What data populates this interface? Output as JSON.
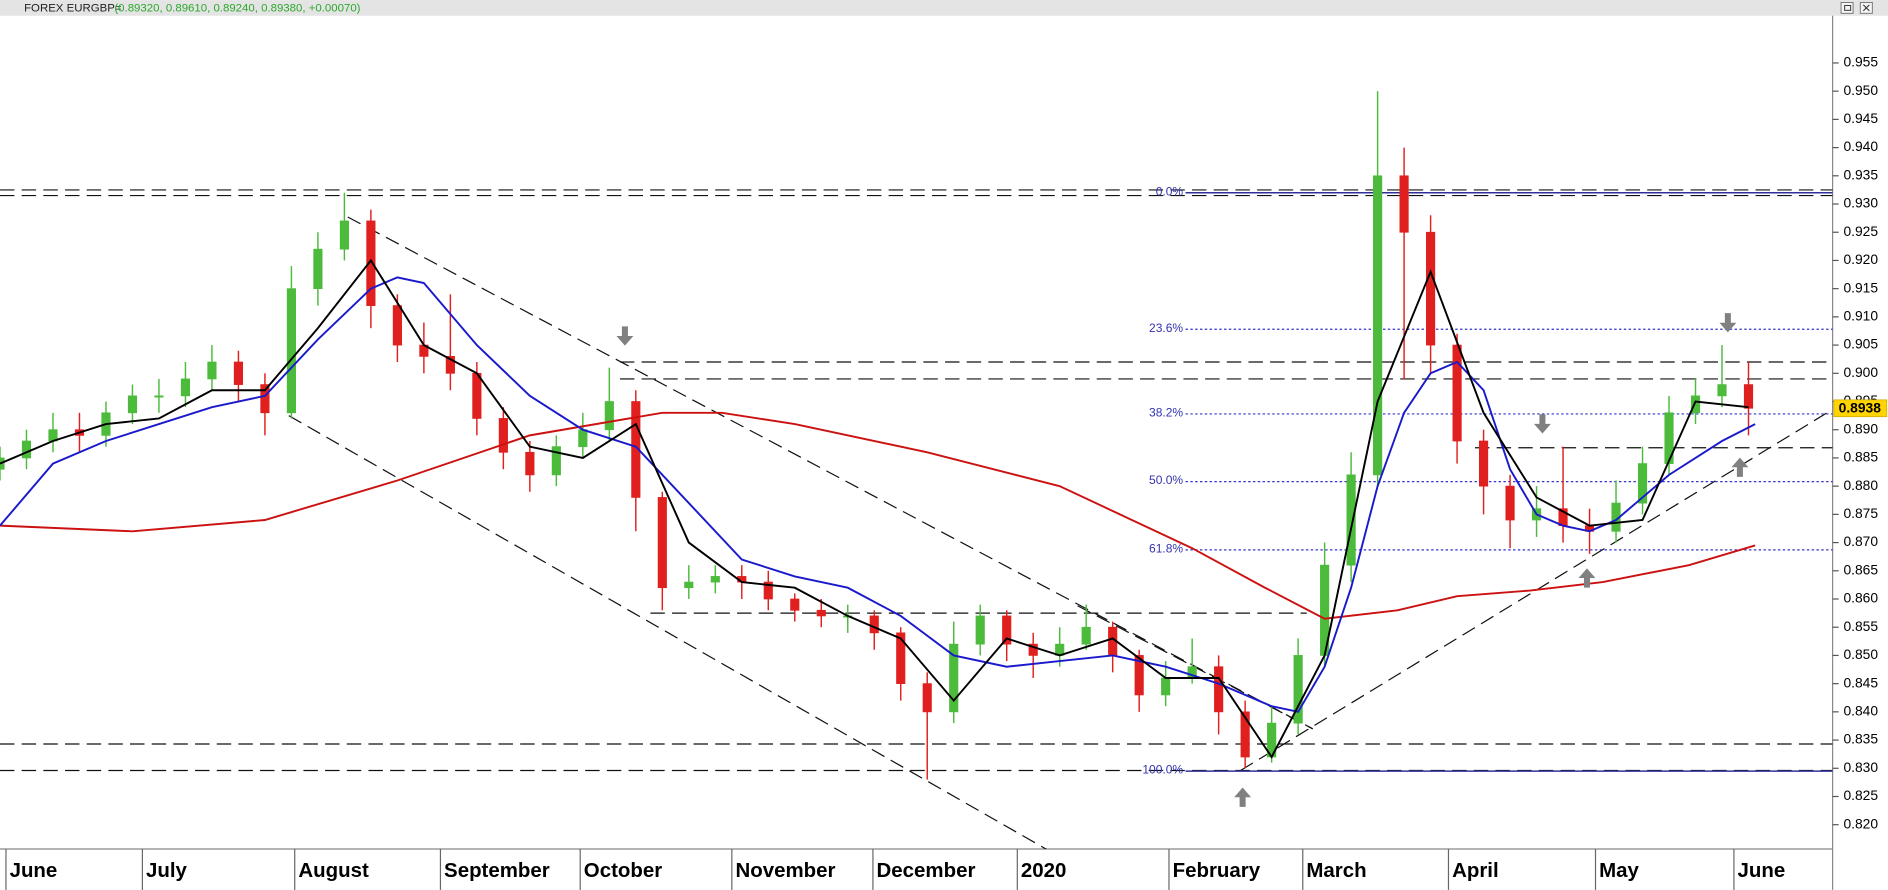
{
  "chart_data": {
    "type": "candlestick",
    "title": "FOREX EURGBP=",
    "subtitle": "(0.89320, 0.89610, 0.89240, 0.89380, +0.00070)",
    "xlim": [
      0,
      276.7
    ],
    "ylim": [
      0.8157,
      0.9623
    ],
    "xticks": [
      {
        "value": 0.9,
        "label": "June"
      },
      {
        "value": 21.5,
        "label": "July"
      },
      {
        "value": 44.5,
        "label": "August"
      },
      {
        "value": 66.5,
        "label": "September"
      },
      {
        "value": 87.6,
        "label": "October"
      },
      {
        "value": 110.5,
        "label": "November"
      },
      {
        "value": 131.8,
        "label": "December"
      },
      {
        "value": 153.6,
        "label": "2020"
      },
      {
        "value": 176.5,
        "label": "February"
      },
      {
        "value": 196.7,
        "label": "March"
      },
      {
        "value": 218.7,
        "label": "April"
      },
      {
        "value": 240.9,
        "label": "May"
      },
      {
        "value": 261.8,
        "label": "June"
      }
    ],
    "yticks": [
      0.955,
      {
        "value": 0.95,
        "label": "0.950"
      },
      0.945,
      {
        "value": 0.94,
        "label": "0.940"
      },
      0.935,
      {
        "value": 0.93,
        "label": "0.930"
      },
      0.925,
      {
        "value": 0.92,
        "label": "0.920"
      },
      0.915,
      {
        "value": 0.91,
        "label": "0.910"
      },
      0.905,
      {
        "value": 0.9,
        "label": "0.900"
      },
      0.895,
      {
        "value": 0.89,
        "label": "0.890"
      },
      0.885,
      {
        "value": 0.88,
        "label": "0.880"
      },
      0.875,
      {
        "value": 0.87,
        "label": "0.870"
      },
      0.865,
      {
        "value": 0.86,
        "label": "0.860"
      },
      0.855,
      {
        "value": 0.85,
        "label": "0.850"
      },
      0.845,
      {
        "value": 0.84,
        "label": "0.840"
      },
      0.835,
      {
        "value": 0.83,
        "label": "0.830"
      },
      0.825,
      {
        "value": 0.82,
        "label": "0.820"
      }
    ],
    "up_color": "#4cbb3c",
    "down_color": "#e0201e",
    "candles": {
      "x": [
        0,
        4,
        8,
        12,
        16,
        20,
        24,
        28,
        32,
        36,
        40,
        44,
        48,
        52,
        56,
        60,
        64,
        68,
        72,
        76,
        80,
        84,
        88,
        92,
        96,
        100,
        104,
        108,
        112,
        116,
        120,
        124,
        128,
        132,
        136,
        140,
        144,
        148,
        152,
        156,
        160,
        164,
        168,
        172,
        176,
        180,
        184,
        188,
        192,
        196,
        200,
        204,
        208,
        212,
        216,
        220,
        224,
        228,
        232,
        236,
        240,
        244,
        248,
        252,
        256,
        260,
        264
      ],
      "open": [
        0.883,
        0.885,
        0.888,
        0.89,
        0.889,
        0.893,
        0.896,
        0.896,
        0.899,
        0.902,
        0.898,
        0.893,
        0.915,
        0.922,
        0.927,
        0.912,
        0.905,
        0.903,
        0.9,
        0.892,
        0.886,
        0.882,
        0.887,
        0.89,
        0.895,
        0.878,
        0.862,
        0.863,
        0.864,
        0.863,
        0.86,
        0.858,
        0.857,
        0.857,
        0.854,
        0.845,
        0.84,
        0.852,
        0.857,
        0.852,
        0.85,
        0.852,
        0.855,
        0.85,
        0.843,
        0.846,
        0.848,
        0.84,
        0.832,
        0.838,
        0.85,
        0.866,
        0.882,
        0.935,
        0.925,
        0.905,
        0.888,
        0.88,
        0.874,
        0.876,
        0.873,
        0.872,
        0.877,
        0.884,
        0.893,
        0.896,
        0.898
      ],
      "high": [
        0.887,
        0.89,
        0.893,
        0.893,
        0.895,
        0.898,
        0.899,
        0.902,
        0.905,
        0.904,
        0.9,
        0.919,
        0.925,
        0.932,
        0.929,
        0.914,
        0.909,
        0.914,
        0.902,
        0.894,
        0.888,
        0.889,
        0.893,
        0.901,
        0.897,
        0.879,
        0.866,
        0.866,
        0.866,
        0.865,
        0.861,
        0.86,
        0.859,
        0.858,
        0.855,
        0.847,
        0.856,
        0.859,
        0.858,
        0.854,
        0.855,
        0.859,
        0.856,
        0.851,
        0.849,
        0.853,
        0.85,
        0.842,
        0.841,
        0.853,
        0.87,
        0.886,
        0.95,
        0.94,
        0.928,
        0.907,
        0.89,
        0.882,
        0.88,
        0.887,
        0.876,
        0.881,
        0.887,
        0.896,
        0.899,
        0.905,
        0.902
      ],
      "low": [
        0.881,
        0.883,
        0.886,
        0.886,
        0.887,
        0.891,
        0.893,
        0.894,
        0.897,
        0.895,
        0.889,
        0.892,
        0.912,
        0.92,
        0.908,
        0.902,
        0.9,
        0.897,
        0.889,
        0.883,
        0.879,
        0.88,
        0.885,
        0.888,
        0.872,
        0.858,
        0.86,
        0.861,
        0.86,
        0.858,
        0.856,
        0.855,
        0.854,
        0.851,
        0.842,
        0.828,
        0.838,
        0.85,
        0.849,
        0.846,
        0.848,
        0.851,
        0.847,
        0.84,
        0.841,
        0.845,
        0.836,
        0.83,
        0.831,
        0.836,
        0.848,
        0.863,
        0.88,
        0.899,
        0.9,
        0.884,
        0.875,
        0.869,
        0.871,
        0.87,
        0.868,
        0.87,
        0.875,
        0.882,
        0.891,
        0.894,
        0.889
      ],
      "close": [
        0.885,
        0.888,
        0.89,
        0.889,
        0.893,
        0.896,
        0.896,
        0.899,
        0.902,
        0.898,
        0.893,
        0.915,
        0.922,
        0.927,
        0.912,
        0.905,
        0.903,
        0.9,
        0.892,
        0.886,
        0.882,
        0.887,
        0.89,
        0.895,
        0.878,
        0.862,
        0.863,
        0.864,
        0.863,
        0.86,
        0.858,
        0.857,
        0.857,
        0.854,
        0.845,
        0.84,
        0.852,
        0.857,
        0.852,
        0.85,
        0.852,
        0.855,
        0.85,
        0.843,
        0.846,
        0.848,
        0.84,
        0.832,
        0.838,
        0.85,
        0.866,
        0.882,
        0.935,
        0.925,
        0.905,
        0.888,
        0.88,
        0.874,
        0.876,
        0.873,
        0.872,
        0.877,
        0.884,
        0.893,
        0.896,
        0.898,
        0.8938
      ]
    },
    "moving_averages": [
      {
        "color": "#cc1111",
        "x": [
          0,
          20,
          40,
          60,
          80,
          100,
          109,
          120,
          140,
          160,
          180,
          191,
          200,
          211,
          220,
          231,
          242,
          255,
          265
        ],
        "values": [
          0.873,
          0.872,
          0.874,
          0.881,
          0.889,
          0.893,
          0.893,
          0.891,
          0.886,
          0.88,
          0.869,
          0.862,
          0.8565,
          0.858,
          0.8605,
          0.8615,
          0.863,
          0.866,
          0.8695
        ]
      },
      {
        "color": "#1a1acc",
        "x": [
          0,
          8,
          16,
          24,
          32,
          40,
          48,
          56,
          60,
          64,
          72,
          80,
          88,
          96,
          104,
          112,
          120,
          128,
          136,
          144,
          152,
          160,
          168,
          176,
          184,
          192,
          196,
          200,
          204,
          208,
          212,
          216,
          220,
          224,
          228,
          232,
          236,
          240,
          244,
          248,
          252,
          256,
          260,
          265
        ],
        "values": [
          0.873,
          0.884,
          0.888,
          0.891,
          0.894,
          0.896,
          0.906,
          0.915,
          0.917,
          0.916,
          0.905,
          0.896,
          0.89,
          0.887,
          0.877,
          0.867,
          0.864,
          0.862,
          0.857,
          0.85,
          0.848,
          0.849,
          0.85,
          0.848,
          0.845,
          0.841,
          0.84,
          0.848,
          0.862,
          0.88,
          0.893,
          0.9,
          0.902,
          0.897,
          0.883,
          0.875,
          0.873,
          0.872,
          0.874,
          0.878,
          0.882,
          0.885,
          0.888,
          0.891
        ]
      },
      {
        "color": "#000000",
        "x": [
          0,
          8,
          16,
          24,
          32,
          40,
          48,
          56,
          64,
          72,
          80,
          88,
          96,
          104,
          112,
          120,
          128,
          136,
          144,
          152,
          160,
          168,
          176,
          184,
          192,
          200,
          208,
          216,
          224,
          232,
          240,
          248,
          256,
          264
        ],
        "values": [
          0.884,
          0.888,
          0.891,
          0.892,
          0.897,
          0.897,
          0.908,
          0.92,
          0.905,
          0.9,
          0.887,
          0.885,
          0.891,
          0.87,
          0.863,
          0.862,
          0.857,
          0.853,
          0.842,
          0.853,
          0.85,
          0.853,
          0.846,
          0.846,
          0.832,
          0.85,
          0.895,
          0.918,
          0.893,
          0.878,
          0.873,
          0.874,
          0.895,
          0.894
        ]
      }
    ],
    "hlines": [
      {
        "value": 0.9325,
        "x": [
          0,
          276.7
        ]
      },
      {
        "value": 0.9315,
        "x": [
          0,
          276.7
        ]
      },
      {
        "value": 0.902,
        "x": [
          93.6,
          276.7
        ]
      },
      {
        "value": 0.899,
        "x": [
          93.6,
          276.7
        ]
      },
      {
        "value": 0.8868,
        "x": [
          222.7,
          276.7
        ]
      },
      {
        "value": 0.8575,
        "x": [
          98.2,
          197.3
        ]
      },
      {
        "value": 0.8343,
        "x": [
          0,
          276.7
        ]
      },
      {
        "value": 0.8296,
        "x": [
          0,
          276.7
        ]
      }
    ],
    "trendlines": [
      {
        "x": [
          52.5,
          198.2
        ],
        "y": [
          0.9277,
          0.837
        ]
      },
      {
        "x": [
          43.6,
          165.8
        ],
        "y": [
          0.8925,
          0.8104
        ]
      },
      {
        "x": [
          162.7,
          198.2
        ],
        "y": [
          0.8588,
          0.837
        ]
      },
      {
        "x": [
          187.3,
          276.7
        ],
        "y": [
          0.8296,
          0.8936
        ]
      }
    ],
    "fib_start": 179,
    "fib_levels": [
      {
        "label": "0.0%",
        "value": 0.932
      },
      {
        "label": "23.6%",
        "value": 0.9078
      },
      {
        "label": "38.2%",
        "value": 0.8928
      },
      {
        "label": "50.0%",
        "value": 0.8808
      },
      {
        "label": "61.8%",
        "value": 0.8687
      },
      {
        "label": "100.0%",
        "value": 0.8295
      }
    ],
    "last_price": {
      "value": 0.8938,
      "label": "0.8938"
    }
  }
}
